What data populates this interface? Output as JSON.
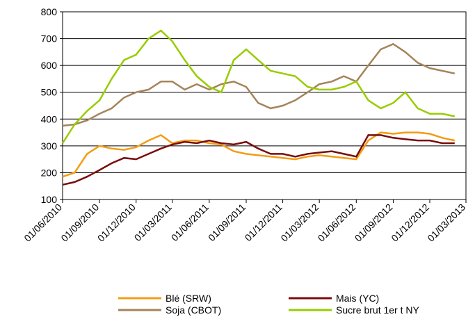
{
  "chart_data": {
    "type": "line",
    "x": [
      "01/06/2010",
      "01/07/2010",
      "01/08/2010",
      "01/09/2010",
      "01/10/2010",
      "01/11/2010",
      "01/12/2010",
      "01/01/2011",
      "01/02/2011",
      "01/03/2011",
      "01/04/2011",
      "01/05/2011",
      "01/06/2011",
      "01/07/2011",
      "01/08/2011",
      "01/09/2011",
      "01/10/2011",
      "01/11/2011",
      "01/12/2011",
      "01/01/2012",
      "01/02/2012",
      "01/03/2012",
      "01/04/2012",
      "01/05/2012",
      "01/06/2012",
      "01/07/2012",
      "01/08/2012",
      "01/09/2012",
      "01/10/2012",
      "01/11/2012",
      "01/12/2012",
      "01/01/2013",
      "01/02/2013"
    ],
    "series": [
      {
        "name": "Blé (SRW)",
        "color": "#f39c12",
        "values": [
          185,
          200,
          270,
          300,
          290,
          285,
          295,
          320,
          340,
          310,
          320,
          320,
          310,
          305,
          280,
          270,
          265,
          260,
          255,
          250,
          260,
          265,
          260,
          255,
          250,
          320,
          350,
          345,
          350,
          350,
          345,
          330,
          320
        ]
      },
      {
        "name": "Mais (YC)",
        "color": "#7b0c0c",
        "values": [
          155,
          165,
          185,
          210,
          235,
          255,
          250,
          270,
          290,
          305,
          315,
          310,
          320,
          310,
          305,
          315,
          290,
          270,
          270,
          260,
          270,
          275,
          280,
          270,
          260,
          340,
          340,
          330,
          325,
          320,
          320,
          310,
          310
        ]
      },
      {
        "name": "Soja (CBOT)",
        "color": "#a5845a",
        "values": [
          375,
          380,
          395,
          420,
          440,
          480,
          500,
          510,
          540,
          540,
          510,
          530,
          510,
          530,
          540,
          520,
          460,
          440,
          450,
          470,
          500,
          530,
          540,
          560,
          540,
          600,
          660,
          680,
          650,
          610,
          590,
          580,
          570
        ]
      },
      {
        "name": "Sucre brut 1er t NY",
        "color": "#99cc00",
        "values": [
          310,
          380,
          430,
          470,
          550,
          620,
          640,
          700,
          730,
          690,
          620,
          560,
          520,
          500,
          620,
          660,
          620,
          580,
          570,
          560,
          520,
          510,
          510,
          520,
          540,
          470,
          440,
          460,
          500,
          440,
          420,
          420,
          410
        ]
      }
    ],
    "xlim": [
      "01/06/2010",
      "01/03/2013"
    ],
    "xticks": [
      "01/06/2010",
      "01/09/2010",
      "01/12/2010",
      "01/03/2011",
      "01/06/2011",
      "01/09/2011",
      "01/12/2011",
      "01/03/2012",
      "01/06/2012",
      "01/09/2012",
      "01/12/2012",
      "01/03/2013"
    ],
    "ylim": [
      100,
      800
    ],
    "yticks": [
      100,
      200,
      300,
      400,
      500,
      600,
      700,
      800
    ],
    "grid": true
  }
}
